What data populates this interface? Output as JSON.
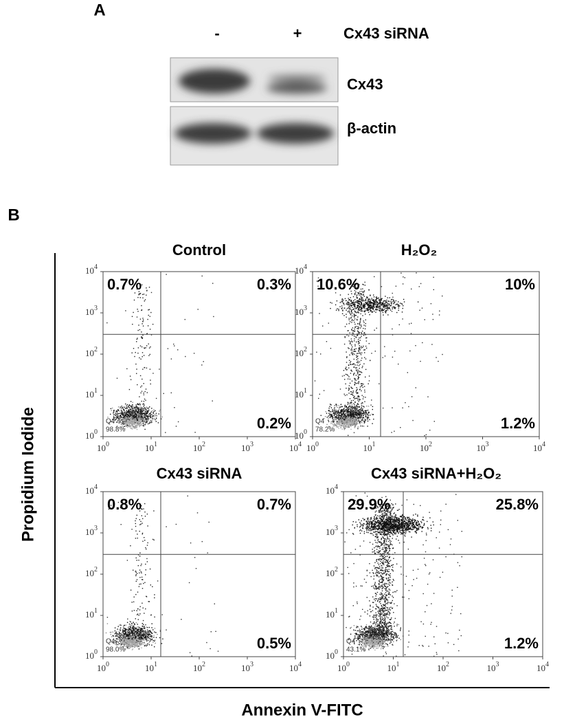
{
  "panel_a": {
    "label": "A",
    "lanes": [
      "-",
      "+"
    ],
    "treatment": "Cx43 siRNA",
    "bands": [
      "Cx43",
      "β-actin"
    ]
  },
  "panel_b": {
    "label": "B",
    "y_label": "Propidium Iodide",
    "x_label": "Annexin V-FITC",
    "tick_base": "10",
    "tick_exponents": [
      "0",
      "1",
      "2",
      "3",
      "4"
    ],
    "plots": [
      {
        "title": "Control",
        "upper_left": "0.7%",
        "upper_right": "0.3%",
        "lower_right": "0.2%",
        "q4_name": "Q4",
        "q4_value": "98.8%"
      },
      {
        "title": "H₂O₂",
        "upper_left": "10.6%",
        "upper_right": "10%",
        "lower_right": "1.2%",
        "q4_name": "Q4",
        "q4_value": "78.2%"
      },
      {
        "title": "Cx43 siRNA",
        "upper_left": "0.8%",
        "upper_right": "0.7%",
        "lower_right": "0.5%",
        "q4_name": "Q4",
        "q4_value": "98.0%"
      },
      {
        "title": "Cx43 siRNA+H₂O₂",
        "upper_left": "29.9%",
        "upper_right": "25.8%",
        "lower_right": "1.2%",
        "q4_name": "Q4",
        "q4_value": "43.1%"
      }
    ]
  }
}
